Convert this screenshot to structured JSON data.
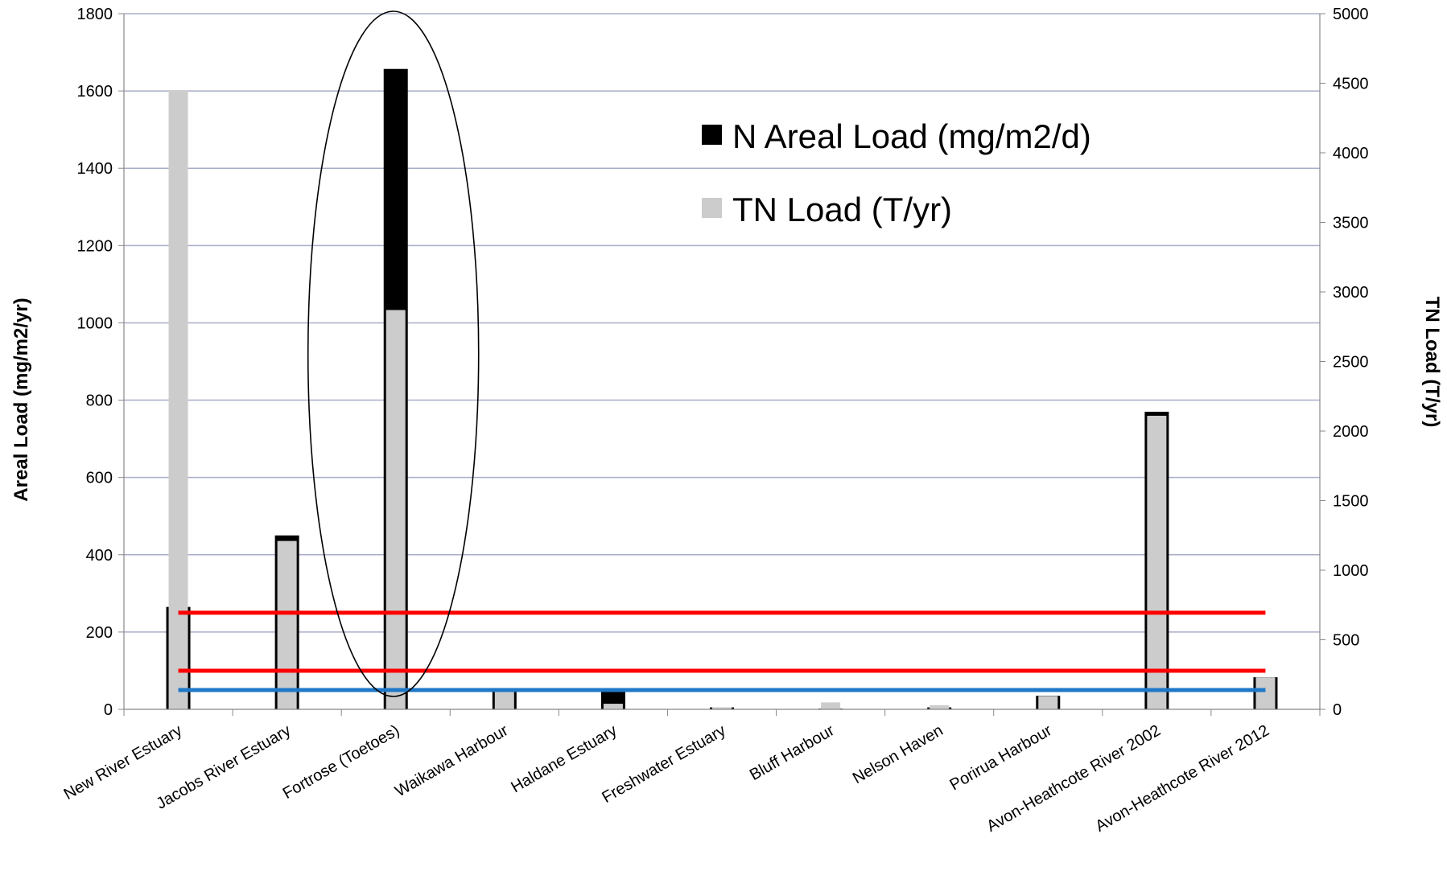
{
  "chart_data": {
    "type": "bar",
    "title": "",
    "ylabel": "Areal Load (mg/m2/yr)",
    "y2label": "TN Load (T/yr)",
    "ylim": [
      0,
      1800
    ],
    "y2lim": [
      0,
      5000
    ],
    "yticks": [
      0,
      200,
      400,
      600,
      800,
      1000,
      1200,
      1400,
      1600,
      1800
    ],
    "y2ticks": [
      0,
      500,
      1000,
      1500,
      2000,
      2500,
      3000,
      3500,
      4000,
      4500,
      5000
    ],
    "grid": true,
    "legend_position": "top-right",
    "categories": [
      "New River Estuary",
      "Jacobs River Estuary",
      "Fortrose (Toetoes)",
      "Waikawa Harbour",
      "Haldane Estuary",
      "Freshwater Estuary",
      "Bluff Harbour",
      "Nelson Haven",
      "Porirua Harbour",
      "Avon-Heathcote River 2002",
      "Avon-Heathcote River 2012"
    ],
    "series": [
      {
        "name": "N Areal Load (mg/m2/d)",
        "axis": "left",
        "color": "#000000",
        "values": [
          265,
          450,
          1657,
          55,
          48,
          5,
          2,
          5,
          35,
          770,
          83
        ]
      },
      {
        "name": "TN Load (T/yr)",
        "axis": "right",
        "color": "#cccccc",
        "values": [
          4450,
          1210,
          2870,
          150,
          40,
          15,
          50,
          30,
          95,
          2110,
          230
        ]
      }
    ],
    "reference_lines": [
      {
        "value": 250,
        "axis": "left",
        "color": "#ff0000"
      },
      {
        "value": 100,
        "axis": "left",
        "color": "#ff0000"
      },
      {
        "value": 50,
        "axis": "left",
        "color": "#1f78c8"
      }
    ],
    "annotations": [
      {
        "type": "ellipse",
        "category": "Fortrose (Toetoes)"
      }
    ]
  }
}
